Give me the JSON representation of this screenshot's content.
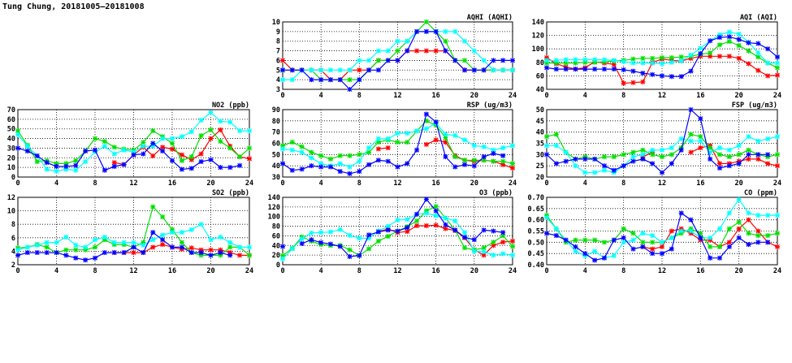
{
  "title": "Tung Chung, 20181005–20181008",
  "series_colors": {
    "red": "#ff0000",
    "green": "#00e000",
    "cyan": "#00ffff",
    "blue": "#0000ff"
  },
  "chart_data": [
    {
      "id": "aqhi",
      "type": "line",
      "title": "AQHI (AQHI)",
      "xlim": [
        0,
        24
      ],
      "ylim": [
        3,
        10
      ],
      "yticks": [
        3,
        4,
        5,
        6,
        7,
        8,
        9,
        10
      ],
      "xticks": [
        0,
        4,
        8,
        12,
        16,
        20,
        24
      ],
      "series": [
        {
          "color": "red",
          "values": [
            6,
            5,
            5,
            5,
            5,
            4,
            4,
            5,
            5,
            5,
            6,
            6,
            6,
            7,
            7,
            7,
            7,
            7,
            6,
            5,
            5,
            5,
            5,
            5,
            5
          ]
        },
        {
          "color": "green",
          "values": [
            5,
            5,
            5,
            5,
            4,
            4,
            4,
            4,
            4,
            5,
            6,
            6,
            7,
            8,
            9,
            10,
            9,
            8,
            6,
            6,
            5,
            5,
            5,
            5,
            5
          ]
        },
        {
          "color": "cyan",
          "values": [
            4,
            4,
            5,
            5,
            5,
            5,
            5,
            5,
            6,
            6,
            7,
            7,
            8,
            8,
            9,
            9,
            9,
            9,
            9,
            8,
            7,
            6,
            5,
            5,
            5
          ]
        },
        {
          "color": "blue",
          "values": [
            5,
            5,
            5,
            4,
            4,
            4,
            4,
            3,
            4,
            5,
            5,
            6,
            6,
            7,
            9,
            9,
            9,
            7,
            6,
            5,
            5,
            5,
            6,
            6,
            6
          ]
        }
      ]
    },
    {
      "id": "aqi",
      "type": "line",
      "title": "AQI (AQI)",
      "xlim": [
        0,
        24
      ],
      "ylim": [
        40,
        140
      ],
      "yticks": [
        40,
        60,
        80,
        100,
        120,
        140
      ],
      "xticks": [
        0,
        4,
        8,
        12,
        16,
        20,
        24
      ],
      "series": [
        {
          "color": "red",
          "values": [
            87,
            78,
            73,
            70,
            72,
            81,
            79,
            77,
            49,
            50,
            51,
            80,
            85,
            83,
            82,
            86,
            89,
            89,
            89,
            89,
            86,
            78,
            68,
            60,
            61
          ]
        },
        {
          "color": "green",
          "values": [
            79,
            79,
            79,
            79,
            80,
            80,
            81,
            82,
            83,
            85,
            86,
            86,
            87,
            87,
            88,
            89,
            92,
            94,
            106,
            111,
            105,
            97,
            88,
            79,
            72
          ]
        },
        {
          "color": "cyan",
          "values": [
            83,
            83,
            84,
            84,
            84,
            84,
            84,
            83,
            81,
            79,
            79,
            79,
            78,
            80,
            82,
            91,
            101,
            112,
            121,
            125,
            122,
            110,
            94,
            79,
            79
          ]
        },
        {
          "color": "blue",
          "values": [
            72,
            70,
            70,
            70,
            70,
            70,
            70,
            70,
            69,
            67,
            64,
            62,
            60,
            59,
            59,
            67,
            93,
            112,
            117,
            118,
            114,
            109,
            108,
            100,
            88
          ]
        }
      ]
    },
    {
      "id": "no2",
      "type": "line",
      "title": "NO2 (ppb)",
      "xlim": [
        0,
        24
      ],
      "ylim": [
        0,
        70
      ],
      "yticks": [
        0,
        10,
        20,
        30,
        40,
        50,
        60,
        70
      ],
      "xticks": [
        0,
        4,
        8,
        12,
        16,
        20,
        24
      ],
      "series": [
        {
          "color": "red",
          "values": [
            null,
            null,
            null,
            null,
            null,
            null,
            null,
            null,
            null,
            null,
            15,
            13,
            23,
            31,
            22,
            31,
            29,
            23,
            18,
            24,
            40,
            49,
            32,
            21,
            19
          ]
        },
        {
          "color": "green",
          "values": [
            48,
            33,
            16,
            17,
            14,
            14,
            17,
            27,
            40,
            37,
            31,
            29,
            28,
            36,
            48,
            42,
            35,
            17,
            21,
            43,
            49,
            37,
            30,
            21,
            30
          ]
        },
        {
          "color": "cyan",
          "values": [
            44,
            32,
            22,
            8,
            6,
            8,
            7,
            16,
            26,
            32,
            24,
            28,
            26,
            32,
            32,
            40,
            40,
            42,
            47,
            59,
            67,
            58,
            57,
            48,
            48
          ]
        },
        {
          "color": "blue",
          "values": [
            30,
            27,
            22,
            15,
            11,
            11,
            12,
            27,
            28,
            7,
            11,
            13,
            23,
            24,
            35,
            27,
            17,
            8,
            9,
            16,
            18,
            10,
            10,
            12,
            null
          ]
        }
      ]
    },
    {
      "id": "rsp",
      "type": "line",
      "title": "RSP (ug/m3)",
      "xlim": [
        0,
        24
      ],
      "ylim": [
        30,
        90
      ],
      "yticks": [
        30,
        40,
        50,
        60,
        70,
        80,
        90
      ],
      "xticks": [
        0,
        4,
        8,
        12,
        16,
        20,
        24
      ],
      "series": [
        {
          "color": "red",
          "values": [
            null,
            null,
            null,
            null,
            null,
            null,
            null,
            null,
            null,
            null,
            55,
            56,
            null,
            null,
            null,
            59,
            63,
            61,
            49,
            45,
            44,
            45,
            44,
            41,
            38
          ]
        },
        {
          "color": "green",
          "values": [
            58,
            61,
            57,
            52,
            49,
            46,
            49,
            49,
            50,
            52,
            61,
            63,
            61,
            61,
            71,
            80,
            76,
            65,
            48,
            45,
            45,
            45,
            44,
            44,
            42
          ]
        },
        {
          "color": "cyan",
          "values": [
            55,
            54,
            52,
            47,
            42,
            40,
            42,
            39,
            44,
            56,
            64,
            64,
            69,
            69,
            71,
            73,
            78,
            68,
            67,
            63,
            58,
            57,
            54,
            56,
            58
          ]
        },
        {
          "color": "blue",
          "values": [
            42,
            36,
            37,
            40,
            39,
            39,
            35,
            33,
            35,
            41,
            45,
            44,
            39,
            42,
            54,
            86,
            79,
            48,
            39,
            41,
            40,
            48,
            51,
            49,
            null
          ]
        }
      ]
    },
    {
      "id": "fsp",
      "type": "line",
      "title": "FSP (ug/m3)",
      "xlim": [
        0,
        24
      ],
      "ylim": [
        20,
        50
      ],
      "yticks": [
        20,
        25,
        30,
        35,
        40,
        45,
        50
      ],
      "xticks": [
        0,
        4,
        8,
        12,
        16,
        20,
        24
      ],
      "series": [
        {
          "color": "red",
          "values": [
            null,
            null,
            null,
            null,
            null,
            null,
            null,
            null,
            null,
            null,
            29,
            31,
            null,
            null,
            null,
            31,
            33,
            34,
            26,
            26,
            27,
            28,
            28,
            26,
            25
          ]
        },
        {
          "color": "green",
          "values": [
            38,
            39,
            31,
            28,
            29,
            28,
            29,
            29,
            30,
            31,
            32,
            30,
            29,
            30,
            33,
            39,
            38,
            33,
            30,
            29,
            30,
            32,
            30,
            29,
            30
          ]
        },
        {
          "color": "cyan",
          "values": [
            34,
            34,
            31,
            25,
            22,
            22,
            23,
            22,
            25,
            29,
            30,
            32,
            32,
            33,
            37,
            36,
            36,
            31,
            33,
            32,
            34,
            38,
            36,
            37,
            38
          ]
        },
        {
          "color": "blue",
          "values": [
            30,
            26,
            27,
            28,
            28,
            28,
            25,
            23,
            25,
            27,
            28,
            26,
            22,
            26,
            32,
            50,
            46,
            28,
            24,
            25,
            26,
            30,
            30,
            30,
            null
          ]
        }
      ]
    },
    {
      "id": "so2",
      "type": "line",
      "title": "SO2 (ppb)",
      "xlim": [
        0,
        24
      ],
      "ylim": [
        2,
        12
      ],
      "yticks": [
        2,
        4,
        6,
        8,
        10,
        12
      ],
      "xticks": [
        0,
        4,
        8,
        12,
        16,
        20,
        24
      ],
      "series": [
        {
          "color": "red",
          "values": [
            null,
            null,
            null,
            null,
            null,
            null,
            null,
            null,
            null,
            null,
            3.8,
            3.8,
            3.8,
            3.8,
            4.6,
            5.0,
            4.6,
            4.3,
            4.5,
            4.2,
            4.2,
            4.2,
            3.8,
            3.4,
            3.4
          ]
        },
        {
          "color": "green",
          "values": [
            4.5,
            4.6,
            5.0,
            4.6,
            3.8,
            4.2,
            4.2,
            4.2,
            4.6,
            5.7,
            5.0,
            5.0,
            4.6,
            5.3,
            10.6,
            9.1,
            7.2,
            5.3,
            3.8,
            3.4,
            3.4,
            3.4,
            4.6,
            4.6,
            3.4
          ]
        },
        {
          "color": "cyan",
          "values": [
            4.2,
            4.6,
            4.9,
            5.3,
            5.3,
            6.1,
            4.9,
            4.6,
            5.7,
            6.1,
            5.3,
            5.3,
            5.3,
            4.9,
            5.7,
            6.4,
            6.8,
            6.8,
            7.2,
            8.0,
            5.7,
            6.1,
            5.3,
            4.6,
            4.6
          ]
        },
        {
          "color": "blue",
          "values": [
            3.4,
            3.8,
            3.8,
            3.8,
            3.8,
            3.4,
            3.0,
            2.7,
            3.0,
            3.8,
            3.8,
            3.8,
            4.6,
            3.8,
            6.8,
            5.7,
            4.6,
            4.6,
            3.8,
            3.8,
            3.4,
            3.8,
            3.4,
            null,
            null
          ]
        }
      ]
    },
    {
      "id": "o3",
      "type": "line",
      "title": "O3 (ppb)",
      "xlim": [
        0,
        24
      ],
      "ylim": [
        0,
        140
      ],
      "yticks": [
        0,
        20,
        40,
        60,
        80,
        100,
        120,
        140
      ],
      "xticks": [
        0,
        4,
        8,
        12,
        16,
        20,
        24
      ],
      "series": [
        {
          "color": "red",
          "values": [
            null,
            null,
            null,
            null,
            null,
            null,
            null,
            null,
            null,
            null,
            69,
            74,
            67,
            69,
            81,
            81,
            82,
            75,
            71,
            56,
            31,
            20,
            40,
            47,
            49
          ]
        },
        {
          "color": "green",
          "values": [
            19,
            34,
            58,
            49,
            42,
            40,
            40,
            31,
            19,
            33,
            49,
            59,
            70,
            79,
            91,
            112,
            121,
            97,
            72,
            35,
            31,
            35,
            47,
            60,
            38
          ]
        },
        {
          "color": "cyan",
          "values": [
            12,
            33,
            54,
            66,
            67,
            68,
            73,
            61,
            55,
            55,
            70,
            80,
            93,
            94,
            105,
            107,
            102,
            97,
            91,
            67,
            28,
            27,
            20,
            23,
            20
          ]
        },
        {
          "color": "blue",
          "values": [
            38,
            null,
            44,
            52,
            46,
            43,
            38,
            17,
            19,
            62,
            68,
            72,
            70,
            77,
            105,
            136,
            112,
            83,
            72,
            57,
            52,
            72,
            70,
            67,
            null
          ]
        }
      ]
    },
    {
      "id": "co",
      "type": "line",
      "title": "CO (ppm)",
      "xlim": [
        0,
        24
      ],
      "ylim": [
        0.4,
        0.7
      ],
      "yticks": [
        "0.40",
        "0.45",
        "0.50",
        "0.55",
        "0.60",
        "0.65",
        "0.70"
      ],
      "xticks": [
        0,
        4,
        8,
        12,
        16,
        20,
        24
      ],
      "series": [
        {
          "color": "red",
          "values": [
            null,
            null,
            null,
            null,
            null,
            null,
            null,
            null,
            null,
            null,
            0.48,
            0.47,
            0.48,
            0.55,
            0.56,
            0.54,
            0.51,
            0.51,
            0.48,
            0.5,
            0.56,
            0.6,
            0.55,
            0.5,
            0.48
          ]
        },
        {
          "color": "green",
          "values": [
            0.62,
            0.56,
            0.5,
            0.51,
            0.51,
            0.51,
            0.5,
            0.51,
            0.56,
            0.54,
            0.5,
            0.5,
            0.5,
            0.52,
            0.54,
            0.56,
            0.54,
            0.48,
            0.48,
            0.56,
            0.59,
            0.54,
            0.53,
            0.53,
            0.54
          ]
        },
        {
          "color": "cyan",
          "values": [
            0.61,
            0.56,
            0.51,
            0.46,
            0.44,
            0.46,
            0.43,
            0.44,
            0.5,
            0.51,
            0.54,
            0.53,
            0.5,
            0.52,
            0.55,
            0.55,
            0.52,
            0.52,
            0.56,
            0.63,
            0.69,
            0.63,
            0.62,
            0.62,
            0.62
          ]
        },
        {
          "color": "blue",
          "values": [
            0.54,
            0.53,
            0.51,
            0.48,
            0.45,
            0.42,
            0.43,
            0.51,
            0.52,
            0.47,
            0.48,
            0.45,
            0.45,
            0.47,
            0.63,
            0.6,
            0.52,
            0.43,
            0.43,
            0.48,
            0.52,
            0.49,
            0.5,
            0.5,
            null
          ]
        }
      ]
    }
  ]
}
